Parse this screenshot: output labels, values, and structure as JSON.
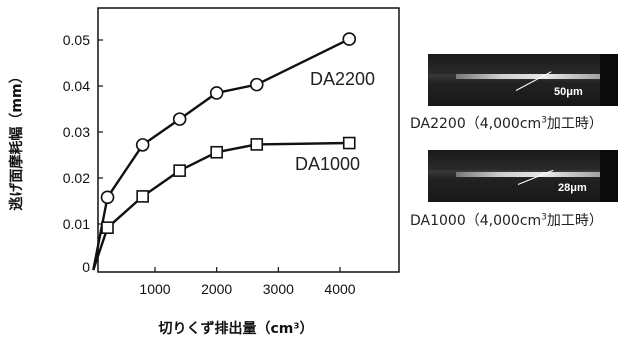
{
  "chart_data": {
    "type": "line",
    "xlabel": "切りくず排出量（cm³）",
    "ylabel": "逃げ面摩耗幅（mm）",
    "xlim": [
      0,
      4500
    ],
    "ylim": [
      0,
      0.055
    ],
    "x_ticks": [
      "1000",
      "2000",
      "3000",
      "4000"
    ],
    "y_ticks": [
      "0",
      "0.01",
      "0.02",
      "0.03",
      "0.04",
      "0.05"
    ],
    "series": [
      {
        "name": "DA2200",
        "marker": "circle",
        "x": [
          0,
          230,
          800,
          1400,
          2000,
          2650,
          4150
        ],
        "y": [
          0,
          0.0158,
          0.0272,
          0.0328,
          0.0385,
          0.0403,
          0.0502
        ]
      },
      {
        "name": "DA1000",
        "marker": "square",
        "x": [
          0,
          230,
          800,
          1400,
          2000,
          2650,
          4150
        ],
        "y": [
          0,
          0.0092,
          0.016,
          0.0216,
          0.0256,
          0.0273,
          0.0276
        ]
      }
    ]
  },
  "photos": [
    {
      "measure": "50μm",
      "caption_prefix": "DA2200（4,000cm",
      "caption_sup": "3",
      "caption_suffix": "加工時）"
    },
    {
      "measure": "28μm",
      "caption_prefix": "DA1000（4,000cm",
      "caption_sup": "3",
      "caption_suffix": "加工時）"
    }
  ]
}
